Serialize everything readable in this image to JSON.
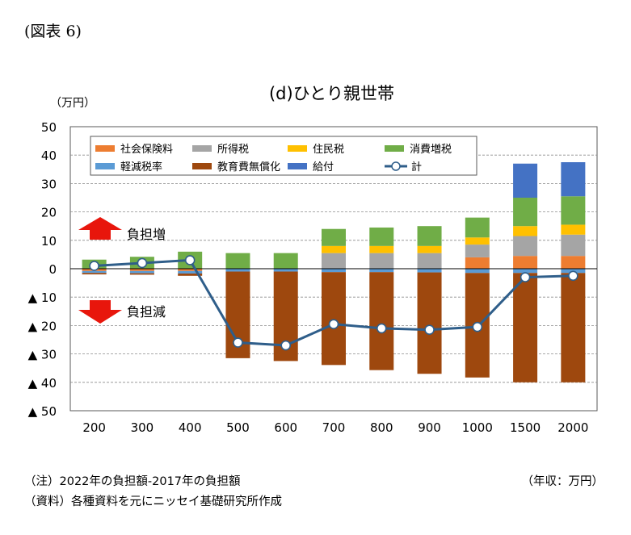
{
  "figure_label": "(図表 6)",
  "unit_label": "（万円）",
  "xunit_label": "（年収：万円）",
  "notes": [
    "（注）2022年の負担額-2017年の負担額",
    "（資料）各種資料を元にニッセイ基礎研究所作成"
  ],
  "annotations": {
    "increase": "負担増",
    "decrease": "負担減"
  },
  "colors": {
    "social_insurance": "#ED7D31",
    "income_tax": "#A5A5A5",
    "resident_tax": "#FFC000",
    "consumption_tax": "#70AD47",
    "reduced_tax": "#5B9BD5",
    "education": "#9E480E",
    "benefit": "#4472C4",
    "total": "#2F5E8A",
    "arrow": "#E8160C"
  },
  "chart_data": {
    "type": "bar",
    "title": "(d)ひとり親世帯",
    "categories": [
      "200",
      "300",
      "400",
      "500",
      "600",
      "700",
      "800",
      "900",
      "1000",
      "1500",
      "2000"
    ],
    "ylim": [
      -50,
      50
    ],
    "yticks": [
      50,
      40,
      30,
      20,
      10,
      0,
      -10,
      -20,
      -30,
      -40,
      -50
    ],
    "ytick_labels": [
      "50",
      "40",
      "30",
      "20",
      "10",
      "0",
      "▲ 10",
      "▲ 20",
      "▲ 30",
      "▲ 40",
      "▲ 50"
    ],
    "grid": true,
    "legend_position": "top",
    "series": [
      {
        "name": "社会保険料",
        "key": "social_insurance",
        "values": [
          -0.8,
          -0.8,
          -0.8,
          0,
          0,
          0,
          0,
          0,
          4,
          4.5,
          4.5
        ]
      },
      {
        "name": "所得税",
        "key": "income_tax",
        "values": [
          0,
          0,
          0,
          0,
          0,
          5.5,
          5.5,
          5.5,
          4.5,
          7,
          7.5
        ]
      },
      {
        "name": "住民税",
        "key": "resident_tax",
        "values": [
          0,
          0,
          0,
          0,
          0,
          2.5,
          2.5,
          2.5,
          2.5,
          3.5,
          3.5
        ]
      },
      {
        "name": "消費増税",
        "key": "consumption_tax",
        "values": [
          3.2,
          4.2,
          6,
          5.5,
          5.5,
          6,
          6.5,
          7,
          7,
          10,
          10
        ]
      },
      {
        "name": "軽減税率",
        "key": "reduced_tax",
        "values": [
          -0.7,
          -0.8,
          -0.9,
          -1,
          -1,
          -1.2,
          -1.2,
          -1.3,
          -1.5,
          -1.5,
          -1.5
        ]
      },
      {
        "name": "教育費無償化",
        "key": "education",
        "values": [
          -0.5,
          -0.5,
          -0.8,
          -30.5,
          -31.5,
          -32.7,
          -34.5,
          -35.7,
          -36.8,
          -38.5,
          -38.5
        ]
      },
      {
        "name": "給付",
        "key": "benefit",
        "values": [
          0,
          0,
          0,
          0,
          0,
          0,
          0,
          0,
          0,
          12,
          12
        ]
      }
    ],
    "total": {
      "name": "計",
      "key": "total",
      "values": [
        1,
        2,
        3,
        -26,
        -27,
        -19.5,
        -21,
        -21.5,
        -20.5,
        -3,
        -2.5
      ]
    }
  }
}
